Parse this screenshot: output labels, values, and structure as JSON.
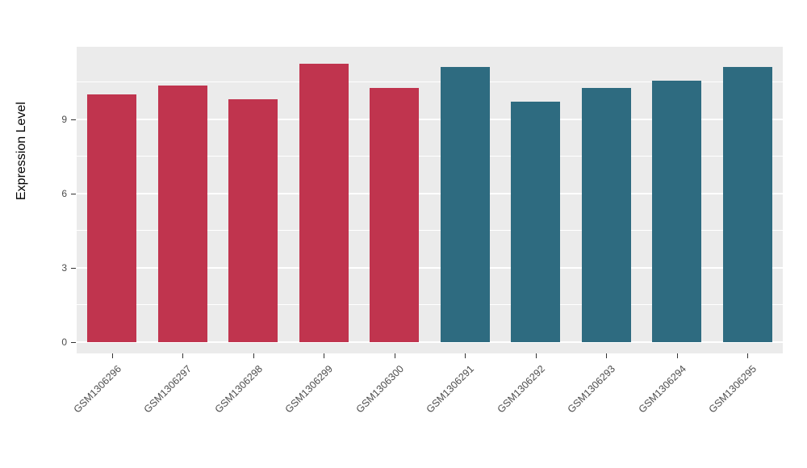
{
  "chart_data": {
    "type": "bar",
    "title": "",
    "xlabel": "",
    "ylabel": "Expression Level",
    "categories": [
      "GSM1306296",
      "GSM1306297",
      "GSM1306298",
      "GSM1306299",
      "GSM1306300",
      "GSM1306291",
      "GSM1306292",
      "GSM1306293",
      "GSM1306294",
      "GSM1306295"
    ],
    "values": [
      10.0,
      10.35,
      9.8,
      11.25,
      10.25,
      11.1,
      9.7,
      10.25,
      10.55,
      11.1
    ],
    "groups": [
      "group1",
      "group1",
      "group1",
      "group1",
      "group1",
      "group2",
      "group2",
      "group2",
      "group2",
      "group2"
    ],
    "group_colors": {
      "group1": "#C0344E",
      "group2": "#2E6B80"
    },
    "yticks": [
      0,
      3,
      6,
      9
    ],
    "ytick_labels": [
      "0",
      "3",
      "6",
      "9"
    ],
    "minor_ticks": [
      1.5,
      4.5,
      7.5,
      10.5
    ],
    "ylim": [
      0,
      11.6
    ],
    "panel_bg": "#EBEBEB",
    "grid_color": "#FFFFFF",
    "grid": true,
    "legend_position": "none"
  }
}
